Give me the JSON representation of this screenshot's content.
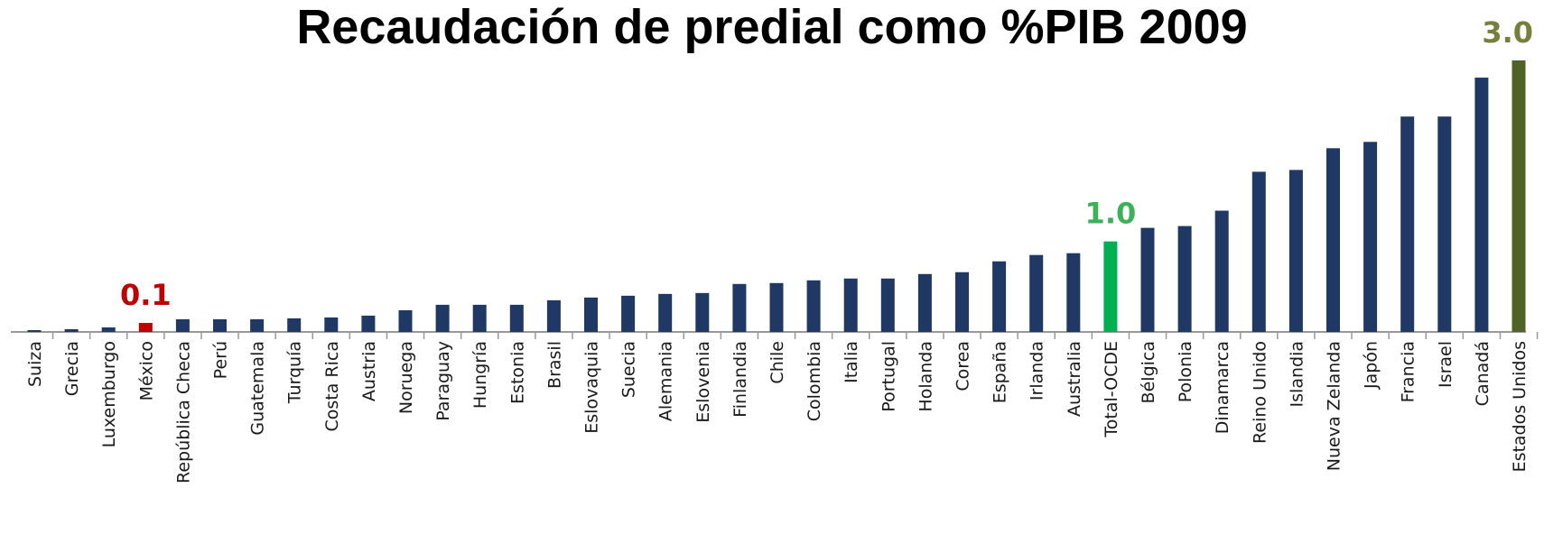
{
  "chart_data": {
    "type": "bar",
    "title": "Recaudación de predial como %PIB 2009",
    "xlabel": "",
    "ylabel": "",
    "ylim": [
      0,
      3.0
    ],
    "grid": false,
    "categories": [
      "Suiza",
      "Grecia",
      "Luxemburgo",
      "México",
      "República Checa",
      "Perú",
      "Guatemala",
      "Turquía",
      "Costa Rica",
      "Austria",
      "Noruega",
      "Paraguay",
      "Hungría",
      "Estonia",
      "Brasil",
      "Eslovaquia",
      "Suecia",
      "Alemania",
      "Eslovenia",
      "Finlandia",
      "Chile",
      "Colombia",
      "Italia",
      "Portugal",
      "Holanda",
      "Corea",
      "España",
      "Irlanda",
      "Australia",
      "Total-OCDE",
      "Bélgica",
      "Polonia",
      "Dinamarca",
      "Reino Unido",
      "Islandia",
      "Nueva Zelanda",
      "Japón",
      "Francia",
      "Israel",
      "Canadá",
      "Estados Unidos"
    ],
    "values": [
      0.02,
      0.03,
      0.05,
      0.1,
      0.14,
      0.14,
      0.14,
      0.15,
      0.16,
      0.18,
      0.24,
      0.3,
      0.3,
      0.3,
      0.35,
      0.38,
      0.4,
      0.42,
      0.43,
      0.53,
      0.54,
      0.57,
      0.59,
      0.59,
      0.64,
      0.66,
      0.78,
      0.85,
      0.87,
      1.0,
      1.15,
      1.17,
      1.34,
      1.77,
      1.79,
      2.03,
      2.1,
      2.38,
      2.38,
      2.81,
      3.0
    ],
    "colors": {
      "default": "#1f3864",
      "highlight_mexico": "#c00000",
      "highlight_total": "#00b050",
      "highlight_usa": "#4f6228",
      "axis": "#999999"
    },
    "annotations": [
      {
        "category": "México",
        "text": "0.1",
        "color": "#c00000"
      },
      {
        "category": "Total-OCDE",
        "text": "1.0",
        "color": "#3cb15a"
      },
      {
        "category": "Estados Unidos",
        "text": "3.0",
        "color": "#76803a"
      }
    ],
    "bar_colors": {
      "México": "#c00000",
      "Total-OCDE": "#00b050",
      "Estados Unidos": "#4f6228"
    }
  }
}
